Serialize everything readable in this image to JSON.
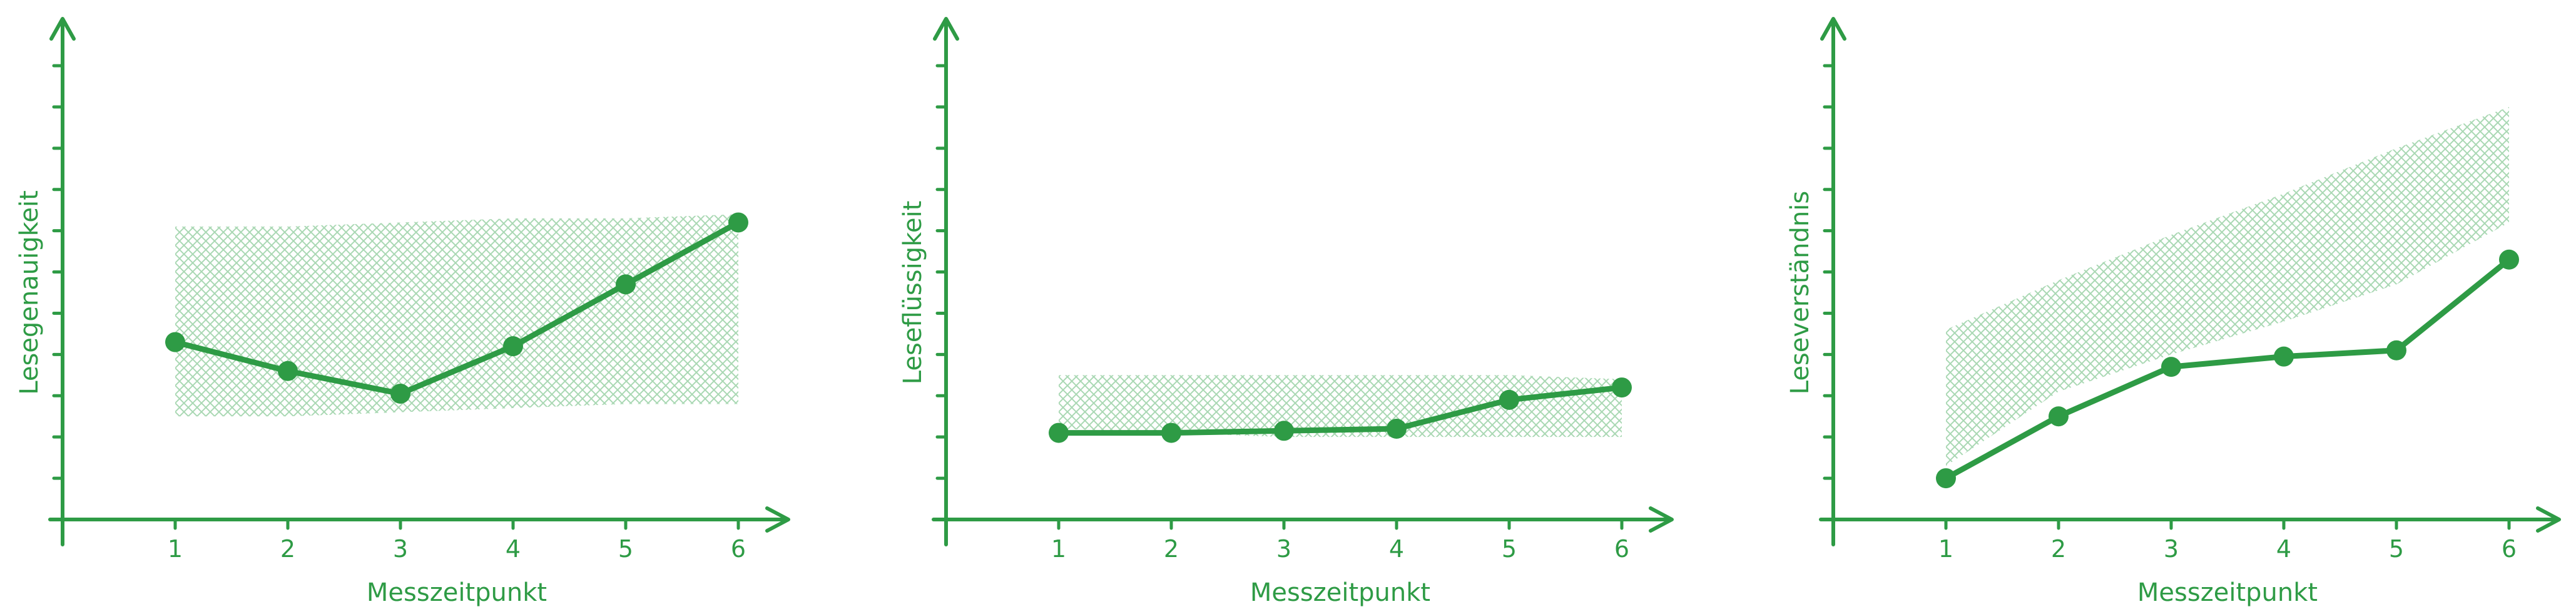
{
  "chart_data": [
    {
      "type": "line",
      "xlabel": "Messzeitpunkt",
      "ylabel": "Lesegenauigkeit",
      "x": [
        1,
        2,
        3,
        4,
        5,
        6
      ],
      "ylim": [
        0,
        11
      ],
      "series": [
        {
          "values": [
            4.3,
            3.6,
            3.05,
            4.2,
            5.7,
            7.2
          ]
        }
      ],
      "band": {
        "lower": [
          2.5,
          2.5,
          2.6,
          2.7,
          2.8,
          2.8
        ],
        "upper": [
          7.1,
          7.1,
          7.2,
          7.3,
          7.3,
          7.4
        ]
      },
      "legend": false
    },
    {
      "type": "line",
      "xlabel": "Messzeitpunkt",
      "ylabel": "Leseflüssigkeit",
      "x": [
        1,
        2,
        3,
        4,
        5,
        6
      ],
      "ylim": [
        0,
        11
      ],
      "series": [
        {
          "values": [
            2.1,
            2.1,
            2.15,
            2.2,
            2.9,
            3.2
          ]
        }
      ],
      "band": {
        "lower": [
          2.2,
          2.1,
          2.0,
          2.0,
          2.0,
          2.0
        ],
        "upper": [
          3.5,
          3.5,
          3.5,
          3.5,
          3.5,
          3.4
        ]
      },
      "legend": false
    },
    {
      "type": "line",
      "xlabel": "Messzeitpunkt",
      "ylabel": "Leseverständnis",
      "x": [
        1,
        2,
        3,
        4,
        5,
        6
      ],
      "ylim": [
        0,
        11
      ],
      "series": [
        {
          "values": [
            1.0,
            2.5,
            3.7,
            3.95,
            4.1,
            6.3
          ]
        }
      ],
      "band": {
        "lower": [
          1.3,
          3.1,
          4.0,
          4.8,
          5.7,
          7.2
        ],
        "upper": [
          4.6,
          5.8,
          6.9,
          7.9,
          9.0,
          10.0
        ]
      },
      "legend": false
    }
  ],
  "style": {
    "color": "#2e9b45",
    "band_color": "#a9d8b3"
  }
}
